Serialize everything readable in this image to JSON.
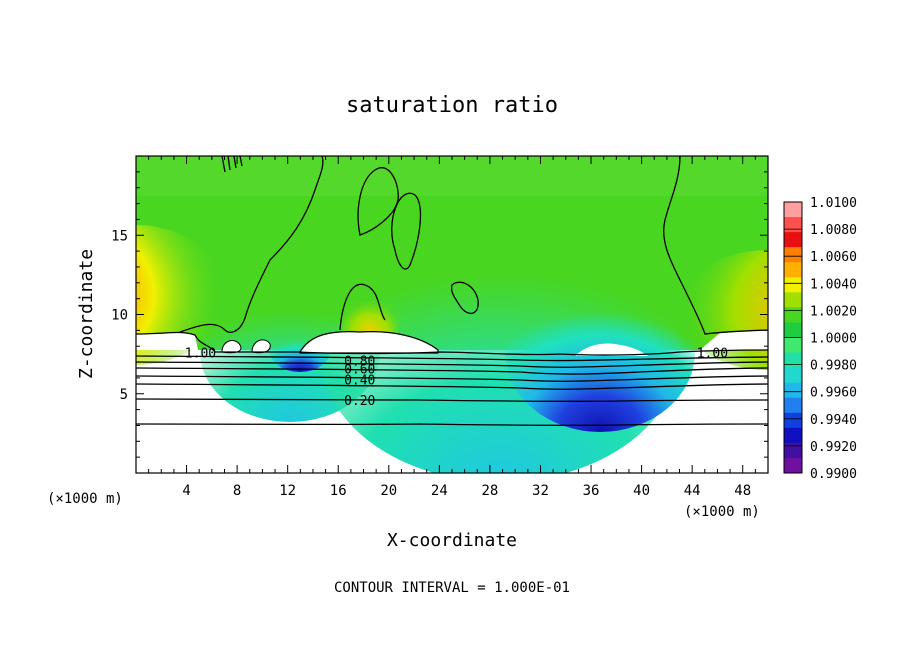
{
  "chart_data": {
    "type": "heatmap",
    "title": "saturation ratio",
    "xlabel": "X-coordinate",
    "ylabel": "Z-coordinate",
    "x_unit_label_left": "(×1000 m)",
    "x_unit_label_right": "(×1000 m)",
    "xlim": [
      0,
      50
    ],
    "ylim": [
      0,
      20
    ],
    "x_ticks": [
      4,
      8,
      12,
      16,
      20,
      24,
      28,
      32,
      36,
      40,
      44,
      48
    ],
    "y_ticks": [
      5,
      10,
      15
    ],
    "footer": "CONTOUR INTERVAL = 1.000E-01",
    "colorbar": {
      "labels": [
        "1.0100",
        "1.0080",
        "1.0060",
        "1.0040",
        "1.0020",
        "1.0000",
        "0.9980",
        "0.9960",
        "0.9940",
        "0.9920",
        "0.9900"
      ],
      "colors": [
        "#ff9fa0",
        "#ff5050",
        "#e81010",
        "#ff7f00",
        "#ffb000",
        "#f0f000",
        "#a0e000",
        "#48d620",
        "#20cc40",
        "#40e870",
        "#20e0a8",
        "#20d8d0",
        "#20b8e8",
        "#2080f0",
        "#1040e0",
        "#1010c0",
        "#4010a0",
        "#7010a0"
      ]
    },
    "contour_labels": [
      {
        "text": "1.00",
        "x": 5.1,
        "y": 7.6
      },
      {
        "text": "1.00",
        "x": 45.6,
        "y": 7.6
      },
      {
        "text": "0.80",
        "x": 17.7,
        "y": 7.1
      },
      {
        "text": "0.60",
        "x": 17.7,
        "y": 6.6
      },
      {
        "text": "0.40",
        "x": 17.7,
        "y": 5.9
      },
      {
        "text": "0.20",
        "x": 17.7,
        "y": 4.6
      }
    ]
  }
}
